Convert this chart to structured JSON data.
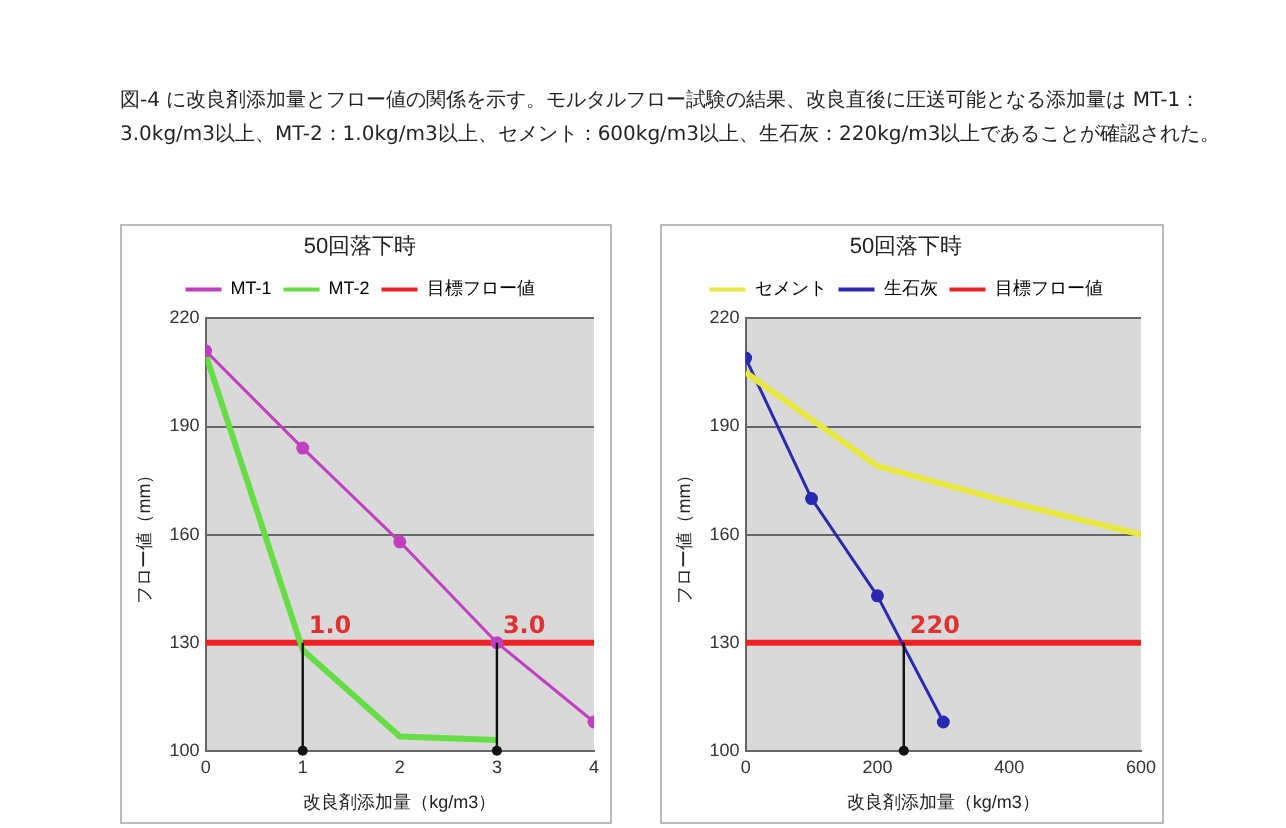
{
  "chart_data": [
    {
      "type": "line",
      "title": "50回落下時",
      "xlabel": "改良剤添加量（kg/m3）",
      "ylabel": "フロー値（mm）",
      "annotations": [
        "図-4 に改良剤添加量とフロー値の関係を示す。モルタルフロー試験の結果、改良直後に圧送可能となる添加量は MT-1：3.0kg/m3以上、MT-2：1.0kg/m3以上、セメント：600kg/m3以上、生石灰：220kg/m3以上であることが確認された。",
        {
          "text": "1.0",
          "x": 1,
          "y": 130
        },
        {
          "text": "3.0",
          "x": 3,
          "y": 130
        }
      ],
      "xlim": [
        0,
        4
      ],
      "xticks": [
        0,
        1,
        2,
        3,
        4
      ],
      "ylim": [
        100,
        220
      ],
      "yticks": [
        100,
        130,
        160,
        190,
        220
      ],
      "grid": "y",
      "legend": "top",
      "series": [
        {
          "name": "MT-1",
          "color": "#c040c0",
          "marker": "circle",
          "x": [
            0,
            1,
            2,
            3,
            4
          ],
          "values": [
            211,
            184,
            158,
            130,
            108
          ]
        },
        {
          "name": "MT-2",
          "color": "#66dd44",
          "marker": "none",
          "x": [
            0,
            1,
            2,
            3
          ],
          "values": [
            210,
            128,
            104,
            103
          ]
        }
      ],
      "ref_lines": [
        {
          "axis": "y",
          "value": 130,
          "label": "目標フロー値",
          "color": "#ee2222"
        }
      ]
    },
    {
      "type": "line",
      "title": "50回落下時",
      "xlabel": "改良剤添加量（kg/m3）",
      "ylabel": "フロー値（mm）",
      "annotations": [
        {
          "text": "220",
          "x": 240,
          "y": 130
        }
      ],
      "xlim": [
        0,
        600
      ],
      "xticks": [
        0,
        200,
        400,
        600
      ],
      "ylim": [
        100,
        220
      ],
      "yticks": [
        100,
        130,
        160,
        190,
        220
      ],
      "grid": "y",
      "legend": "top",
      "series": [
        {
          "name": "セメント",
          "color": "#e8e840",
          "marker": "none",
          "x": [
            0,
            200,
            400,
            600
          ],
          "values": [
            205,
            179,
            169,
            160
          ]
        },
        {
          "name": "生石灰",
          "color": "#2a2ab0",
          "marker": "circle",
          "x": [
            0,
            100,
            200,
            300
          ],
          "values": [
            209,
            170,
            143,
            108
          ]
        }
      ],
      "ref_lines": [
        {
          "axis": "y",
          "value": 130,
          "label": "目標フロー値",
          "color": "#ee2222"
        }
      ]
    }
  ]
}
